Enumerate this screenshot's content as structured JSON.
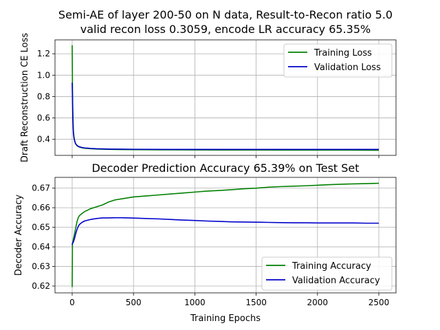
{
  "figure": {
    "title_line1": "Semi-AE of layer 200-50 on N data, Result-to-Recon ratio 5.0",
    "title_line2": "valid recon loss 0.3059, encode LR accuracy 65.35%"
  },
  "colors": {
    "training": "#008000",
    "validation": "#0000cc"
  },
  "chart_data": [
    {
      "type": "line",
      "title": "",
      "xlabel": "",
      "ylabel": "Draft Reconstruction CE Loss",
      "xlim": [
        -140,
        2640
      ],
      "ylim": [
        0.25,
        1.33
      ],
      "xticks": [
        0,
        500,
        1000,
        1500,
        2000,
        2500
      ],
      "yticks": [
        0.4,
        0.6,
        0.8,
        1.0,
        1.2
      ],
      "ytick_labels": [
        "0.4",
        "0.6",
        "0.8",
        "1.0",
        "1.2"
      ],
      "grid": true,
      "legend": "top-right",
      "series": [
        {
          "name": "Training Loss",
          "color": "#008000",
          "x": [
            0,
            2,
            4,
            6,
            8,
            10,
            15,
            20,
            25,
            30,
            40,
            50,
            60,
            80,
            100,
            150,
            200,
            300,
            400,
            500,
            750,
            1000,
            1250,
            1500,
            1750,
            2000,
            2250,
            2500
          ],
          "y": [
            1.28,
            0.95,
            0.75,
            0.62,
            0.54,
            0.48,
            0.42,
            0.39,
            0.37,
            0.355,
            0.34,
            0.332,
            0.327,
            0.321,
            0.317,
            0.312,
            0.309,
            0.306,
            0.304,
            0.303,
            0.302,
            0.301,
            0.3,
            0.3,
            0.299,
            0.299,
            0.299,
            0.298
          ]
        },
        {
          "name": "Validation Loss",
          "color": "#0000cc",
          "x": [
            0,
            2,
            4,
            6,
            8,
            10,
            15,
            20,
            25,
            30,
            40,
            50,
            60,
            80,
            100,
            150,
            200,
            300,
            400,
            500,
            750,
            1000,
            1250,
            1500,
            1750,
            2000,
            2250,
            2500
          ],
          "y": [
            0.93,
            0.8,
            0.68,
            0.58,
            0.51,
            0.46,
            0.41,
            0.385,
            0.368,
            0.355,
            0.343,
            0.335,
            0.33,
            0.324,
            0.32,
            0.315,
            0.312,
            0.309,
            0.308,
            0.307,
            0.306,
            0.306,
            0.306,
            0.306,
            0.306,
            0.306,
            0.306,
            0.306
          ]
        }
      ]
    },
    {
      "type": "line",
      "title": "Decoder Prediction Accuracy 65.39% on Test Set",
      "xlabel": "Training Epochs",
      "ylabel": "Decoder Accuracy",
      "xlim": [
        -140,
        2640
      ],
      "ylim": [
        0.6165,
        0.6755
      ],
      "xticks": [
        0,
        500,
        1000,
        1500,
        2000,
        2500
      ],
      "xtick_labels": [
        "0",
        "500",
        "1000",
        "1500",
        "2000",
        "2500"
      ],
      "yticks": [
        0.62,
        0.63,
        0.64,
        0.65,
        0.66,
        0.67
      ],
      "ytick_labels": [
        "0.62",
        "0.63",
        "0.64",
        "0.65",
        "0.66",
        "0.67"
      ],
      "grid": true,
      "legend": "bottom-right",
      "series": [
        {
          "name": "Training Accuracy",
          "color": "#008000",
          "x": [
            0,
            2,
            5,
            10,
            20,
            30,
            40,
            50,
            60,
            80,
            100,
            150,
            200,
            250,
            300,
            350,
            400,
            500,
            600,
            700,
            800,
            900,
            1000,
            1100,
            1200,
            1300,
            1400,
            1500,
            1600,
            1700,
            1800,
            1900,
            2000,
            2100,
            2200,
            2300,
            2400,
            2500
          ],
          "y": [
            0.6195,
            0.641,
            0.6425,
            0.644,
            0.647,
            0.65,
            0.653,
            0.655,
            0.656,
            0.657,
            0.658,
            0.6595,
            0.6605,
            0.6615,
            0.663,
            0.664,
            0.6645,
            0.6655,
            0.666,
            0.6665,
            0.667,
            0.6675,
            0.668,
            0.6685,
            0.6688,
            0.6692,
            0.6697,
            0.67,
            0.6705,
            0.6708,
            0.671,
            0.6712,
            0.6715,
            0.6718,
            0.672,
            0.6722,
            0.6723,
            0.6725
          ]
        },
        {
          "name": "Validation Accuracy",
          "color": "#0000cc",
          "x": [
            0,
            2,
            5,
            10,
            20,
            30,
            40,
            50,
            60,
            80,
            100,
            150,
            200,
            250,
            300,
            350,
            400,
            500,
            600,
            700,
            800,
            900,
            1000,
            1100,
            1200,
            1300,
            1400,
            1500,
            1600,
            1700,
            1800,
            1900,
            2000,
            2100,
            2200,
            2300,
            2400,
            2500
          ],
          "y": [
            0.641,
            0.6418,
            0.642,
            0.6425,
            0.6445,
            0.647,
            0.649,
            0.6505,
            0.6515,
            0.6525,
            0.6532,
            0.654,
            0.6545,
            0.6548,
            0.6548,
            0.6549,
            0.6549,
            0.6547,
            0.6545,
            0.6543,
            0.654,
            0.6537,
            0.6535,
            0.6532,
            0.653,
            0.6528,
            0.6527,
            0.6526,
            0.6525,
            0.6524,
            0.6523,
            0.6523,
            0.6522,
            0.6522,
            0.6522,
            0.6522,
            0.6521,
            0.6521
          ]
        }
      ]
    }
  ]
}
